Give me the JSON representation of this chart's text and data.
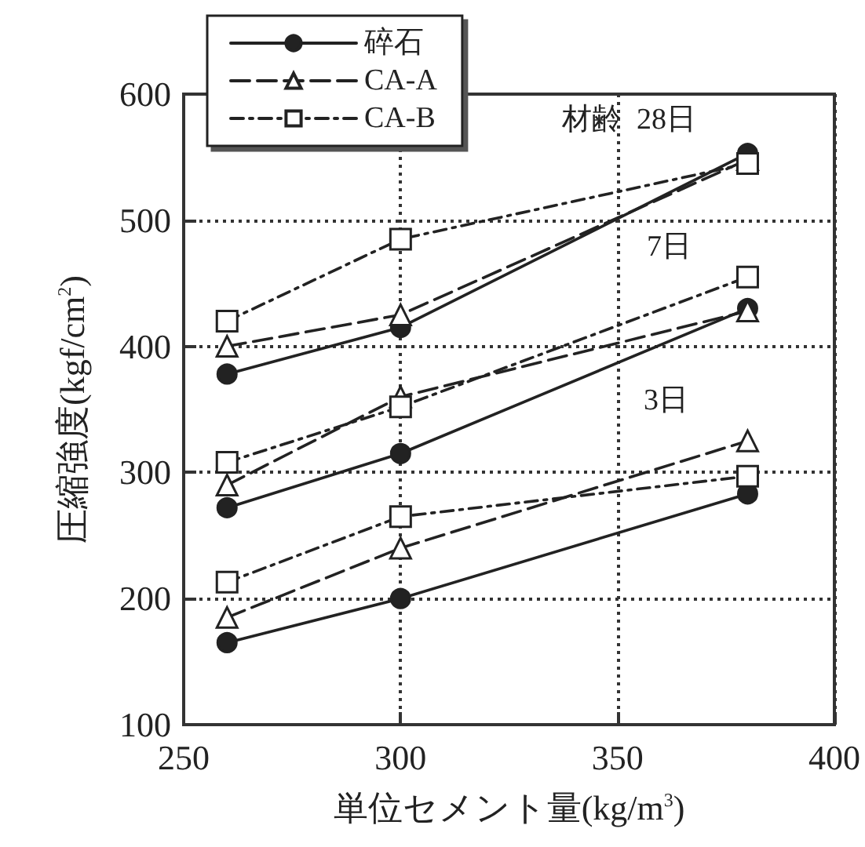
{
  "chart_data": {
    "type": "line",
    "xlabel": "単位セメント量(kg/m$^{3}$)",
    "ylabel": "圧縮強度(kgf/cm$^{2}$)",
    "xlim": [
      250,
      400
    ],
    "xticks": [
      250,
      300,
      350,
      400
    ],
    "ylim": [
      100,
      600
    ],
    "yticks": [
      100,
      200,
      300,
      400,
      500,
      600
    ],
    "grid": true,
    "legend": "top left",
    "annotations": [
      "材齢  28日",
      "7日",
      "3日"
    ],
    "series": [
      {
        "name": "碎石",
        "color": "#222222",
        "marker": "circle",
        "line_style": "solid",
        "x": [
          260,
          300,
          380
        ],
        "values": [
          378,
          415,
          553
        ]
      },
      {
        "name": "CA-A",
        "color": "#222222",
        "marker": "triangle",
        "line_style": "dashed",
        "x": [
          260,
          300,
          380
        ],
        "values": [
          400,
          425,
          548
        ]
      },
      {
        "name": "CA-B",
        "color": "#222222",
        "marker": "square",
        "line_style": "dotted",
        "x": [
          260,
          300,
          380
        ],
        "values": [
          420,
          485,
          545
        ]
      },
      {
        "color": "#222222",
        "marker": "circle",
        "line_style": "solid",
        "x": [
          260,
          300,
          380
        ],
        "values": [
          272,
          315,
          430
        ]
      },
      {
        "color": "#222222",
        "marker": "triangle",
        "line_style": "dashed",
        "x": [
          260,
          300,
          380
        ],
        "values": [
          290,
          360,
          428
        ]
      },
      {
        "color": "#222222",
        "marker": "square",
        "line_style": "dotted",
        "x": [
          260,
          300,
          380
        ],
        "values": [
          308,
          352,
          455
        ]
      },
      {
        "color": "#222222",
        "marker": "circle",
        "line_style": "solid",
        "x": [
          260,
          300,
          380
        ],
        "values": [
          165,
          200,
          283
        ]
      },
      {
        "color": "#222222",
        "marker": "triangle",
        "line_style": "dashed",
        "x": [
          260,
          300,
          380
        ],
        "values": [
          185,
          240,
          325
        ]
      },
      {
        "color": "#222222",
        "marker": "square",
        "line_style": "dotted",
        "x": [
          260,
          300,
          380
        ],
        "values": [
          213,
          265,
          297
        ]
      }
    ]
  }
}
